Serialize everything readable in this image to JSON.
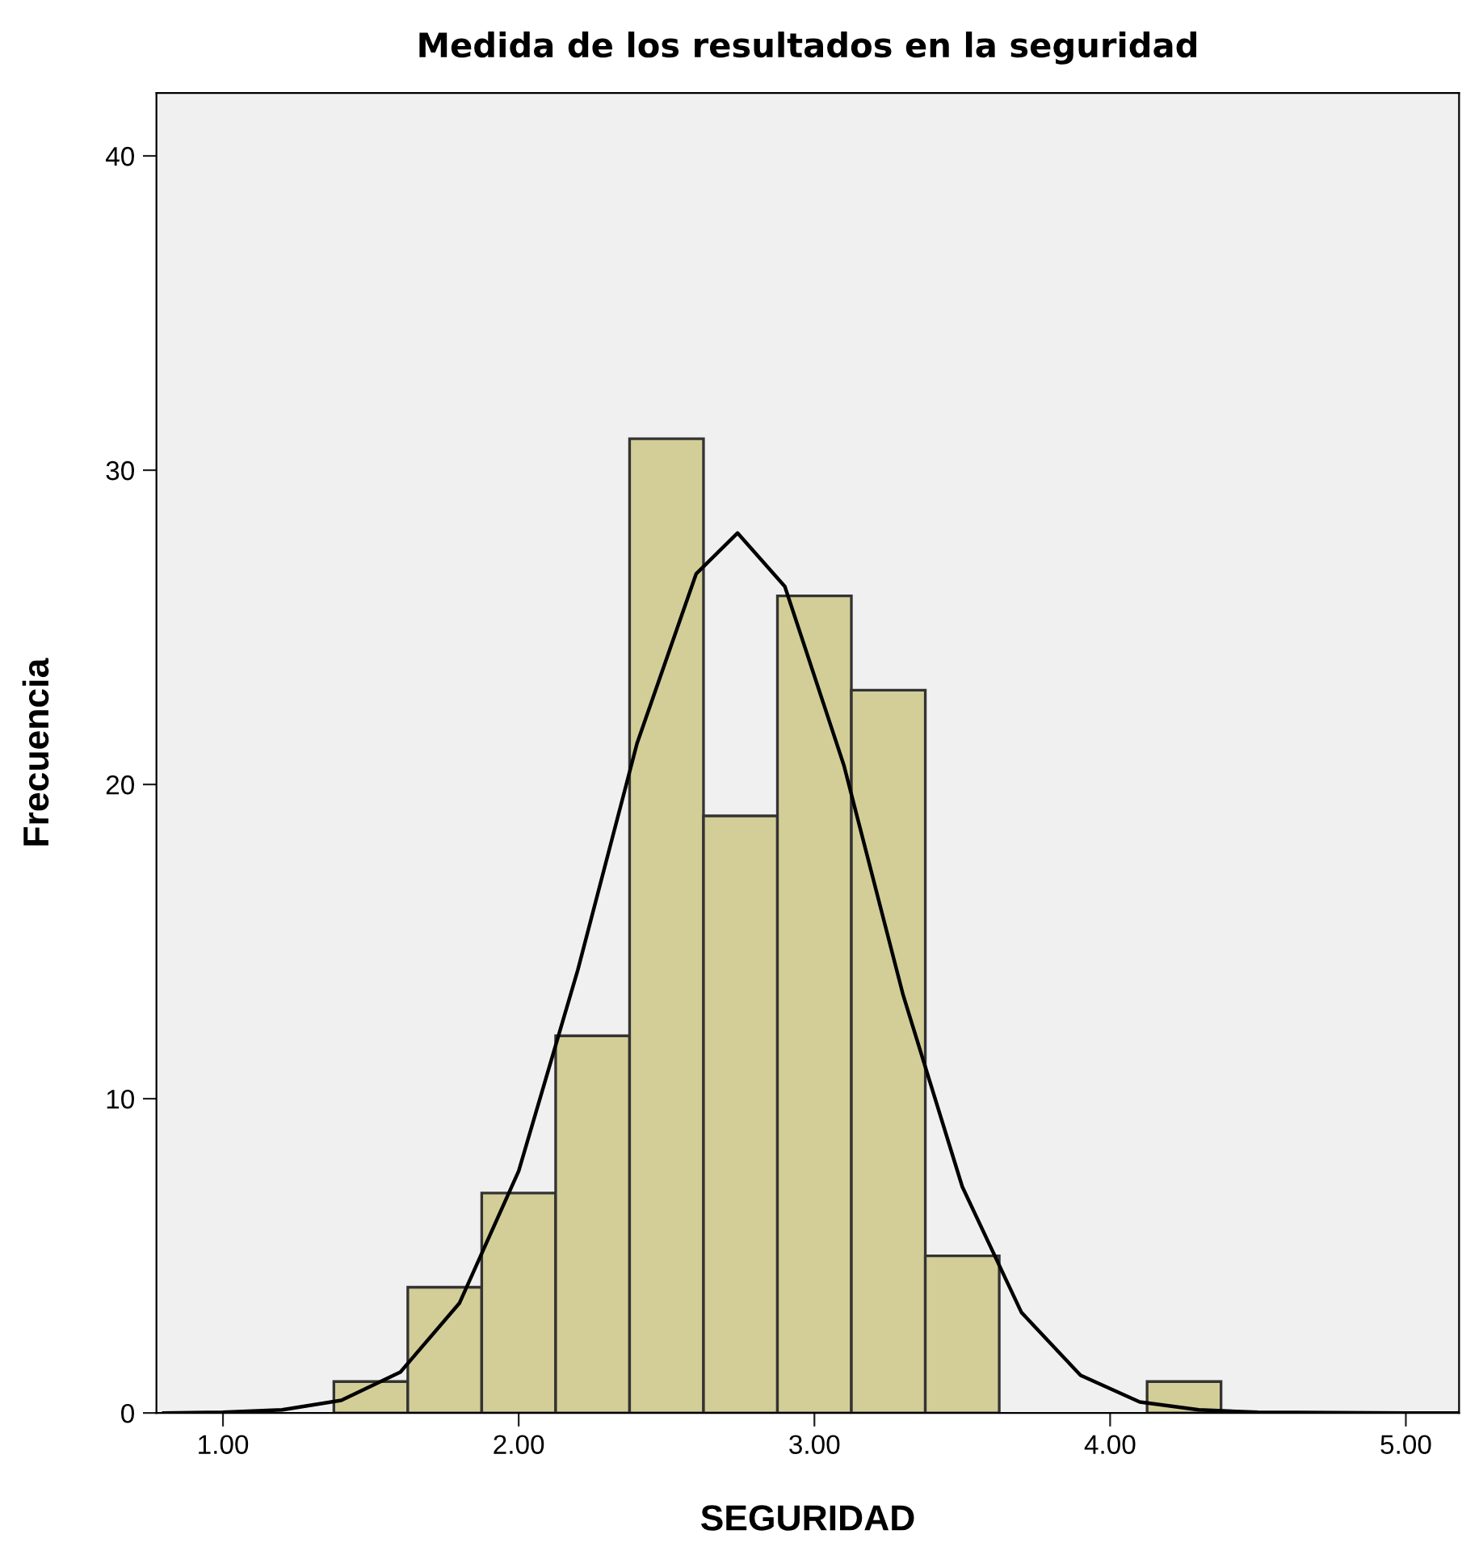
{
  "chart_data": {
    "type": "histogram",
    "title": "Medida de los resultados en la seguridad",
    "xlabel": "SEGURIDAD",
    "ylabel": "Frecuencia",
    "bins": [
      1.375,
      1.625,
      1.875,
      2.125,
      2.375,
      2.625,
      2.875,
      3.125,
      3.375,
      3.625,
      3.875,
      4.125,
      4.375
    ],
    "values": [
      1,
      4,
      7,
      12,
      31,
      19,
      26,
      23,
      5,
      0,
      0,
      1
    ],
    "color": "#d3ce97",
    "series": [
      {
        "type": "line",
        "color": "#000000",
        "x": [
          0.8,
          1.0,
          1.2,
          1.4,
          1.6,
          1.8,
          2.0,
          2.2,
          2.4,
          2.6,
          2.74,
          2.9,
          3.1,
          3.3,
          3.5,
          3.7,
          3.9,
          4.1,
          4.3,
          4.5,
          5.0,
          5.18
        ],
        "values": [
          0,
          0.02,
          0.1,
          0.4,
          1.3,
          3.5,
          7.7,
          14.1,
          21.3,
          26.7,
          28,
          26.3,
          20.6,
          13.3,
          7.2,
          3.2,
          1.2,
          0.35,
          0.1,
          0.02,
          0,
          0
        ]
      }
    ],
    "xlim": [
      0.775,
      5.18
    ],
    "xticks": [
      {
        "value": 1,
        "label": "1.00"
      },
      {
        "value": 2,
        "label": "2.00"
      },
      {
        "value": 3,
        "label": "3.00"
      },
      {
        "value": 4,
        "label": "4.00"
      },
      {
        "value": 5,
        "label": "5.00"
      }
    ],
    "ylim": [
      0,
      42
    ],
    "yticks": [
      0,
      10,
      20,
      30,
      40
    ],
    "grid": false,
    "legend": false
  }
}
